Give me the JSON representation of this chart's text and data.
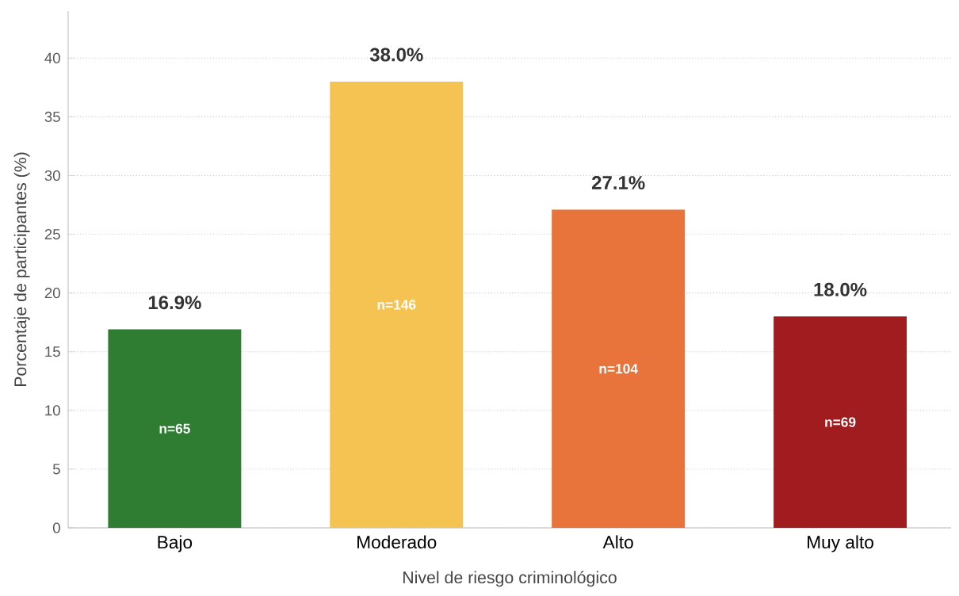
{
  "chart_data": {
    "type": "bar",
    "xlabel": "Nivel de riesgo criminológico",
    "ylabel": "Porcentaje de participantes (%)",
    "categories": [
      "Bajo",
      "Moderado",
      "Alto",
      "Muy alto"
    ],
    "values": [
      16.9,
      38.0,
      27.1,
      18.0
    ],
    "colors": [
      "#2e7d32",
      "#f4c352",
      "#e8743b",
      "#a01c1f"
    ],
    "value_labels": [
      "16.9%",
      "38.0%",
      "27.1%",
      "18.0%"
    ],
    "annotations": [
      "n=65",
      "n=146",
      "n=104",
      "n=69"
    ],
    "ylim": [
      0,
      44
    ],
    "yticks": [
      0,
      5,
      10,
      15,
      20,
      25,
      30,
      35,
      40
    ],
    "grid": "y"
  }
}
